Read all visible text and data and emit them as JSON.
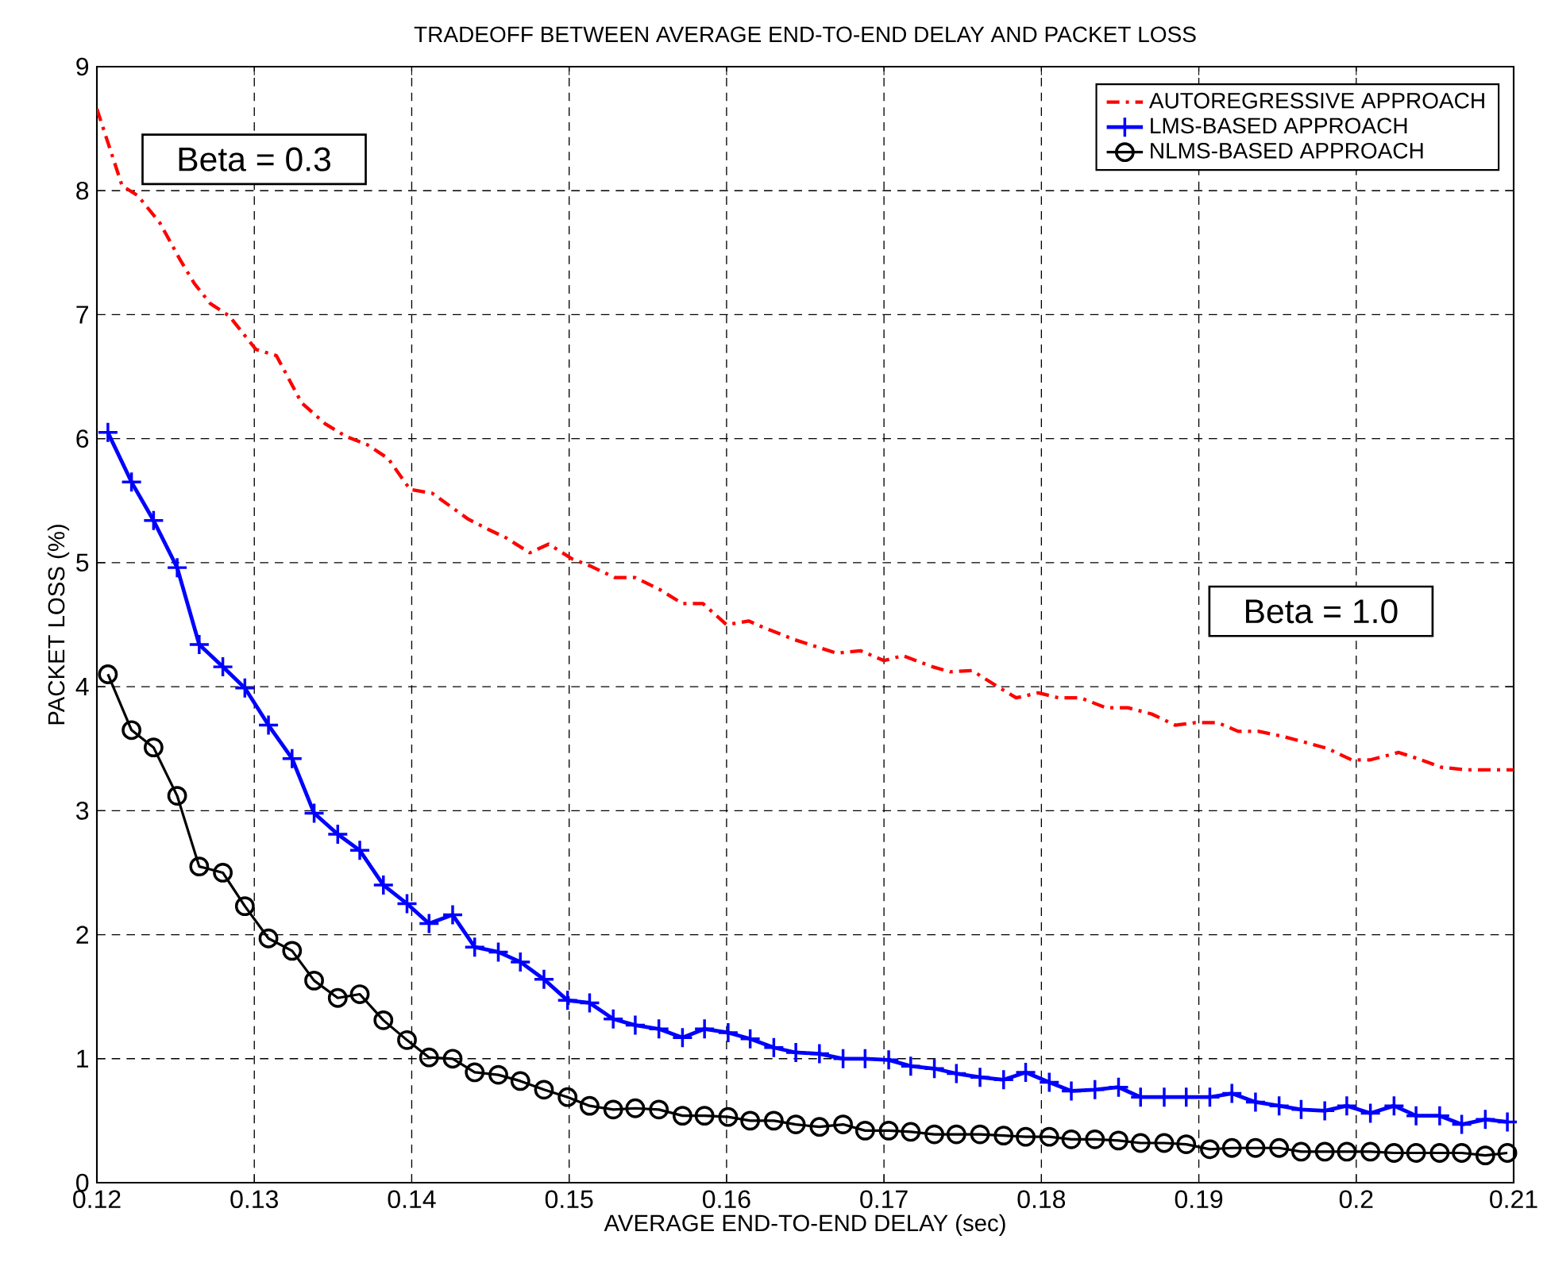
{
  "chart_data": {
    "type": "line",
    "title": "TRADEOFF BETWEEN AVERAGE END-TO-END DELAY AND PACKET LOSS",
    "xlabel": "AVERAGE END-TO-END DELAY (sec)",
    "ylabel": "PACKET LOSS (%)",
    "annotations": [
      "Beta = 0.3",
      "Beta = 1.0"
    ],
    "x": [
      0.1207,
      0.1222,
      0.1236,
      0.1251,
      0.1265,
      0.128,
      0.1294,
      0.1309,
      0.1324,
      0.1338,
      0.1353,
      0.1367,
      0.1382,
      0.1397,
      0.1411,
      0.1426,
      0.144,
      0.1455,
      0.1469,
      0.1484,
      0.1499,
      0.1513,
      0.1528,
      0.1542,
      0.1557,
      0.1572,
      0.1586,
      0.1601,
      0.1615,
      0.163,
      0.1644,
      0.1659,
      0.1674,
      0.1688,
      0.1703,
      0.1717,
      0.1732,
      0.1746,
      0.1761,
      0.1776,
      0.179,
      0.1805,
      0.1819,
      0.1834,
      0.1849,
      0.1863,
      0.1878,
      0.1892,
      0.1907,
      0.1921,
      0.1936,
      0.1951,
      0.1965,
      0.198,
      0.1994,
      0.2009,
      0.2024,
      0.2038,
      0.2053,
      0.2067,
      0.2082,
      0.2096
    ],
    "series": [
      {
        "name": "AUTOREGRESSIVE APPROACH",
        "color": "#ff0000",
        "line_style": "dashdot",
        "marker": "none",
        "x": [
          0.12,
          0.1216,
          0.1226,
          0.124,
          0.1253,
          0.1262,
          0.1272,
          0.1284,
          0.1301,
          0.1314,
          0.133,
          0.1345,
          0.1358,
          0.1372,
          0.1385,
          0.1399,
          0.1413,
          0.1436,
          0.145,
          0.146,
          0.1475,
          0.1487,
          0.1502,
          0.1514,
          0.1529,
          0.1542,
          0.1558,
          0.1572,
          0.1585,
          0.16,
          0.1614,
          0.1623,
          0.1643,
          0.167,
          0.1685,
          0.17,
          0.1712,
          0.1731,
          0.1742,
          0.1756,
          0.1771,
          0.1784,
          0.1798,
          0.1811,
          0.1825,
          0.1841,
          0.1855,
          0.187,
          0.1885,
          0.1898,
          0.1912,
          0.1925,
          0.1938,
          0.1953,
          0.1965,
          0.1982,
          0.1997,
          0.2009,
          0.2027,
          0.2039,
          0.2054,
          0.2069,
          0.21
        ],
        "values": [
          8.66,
          8.04,
          7.96,
          7.74,
          7.44,
          7.25,
          7.09,
          6.99,
          6.72,
          6.67,
          6.29,
          6.12,
          6.02,
          5.95,
          5.84,
          5.59,
          5.56,
          5.35,
          5.26,
          5.2,
          5.08,
          5.15,
          5.03,
          4.97,
          4.88,
          4.88,
          4.78,
          4.67,
          4.67,
          4.5,
          4.53,
          4.48,
          4.38,
          4.27,
          4.29,
          4.21,
          4.25,
          4.16,
          4.12,
          4.13,
          4.01,
          3.91,
          3.95,
          3.91,
          3.91,
          3.83,
          3.83,
          3.78,
          3.69,
          3.71,
          3.71,
          3.64,
          3.64,
          3.6,
          3.56,
          3.5,
          3.41,
          3.41,
          3.47,
          3.42,
          3.35,
          3.33,
          3.33
        ]
      },
      {
        "name": "LMS-BASED APPROACH",
        "color": "#0000ff",
        "line_style": "solid",
        "marker": "cross",
        "values": [
          6.05,
          5.65,
          5.34,
          4.96,
          4.34,
          4.16,
          3.99,
          3.69,
          3.42,
          2.98,
          2.81,
          2.68,
          2.4,
          2.25,
          2.09,
          2.16,
          1.9,
          1.86,
          1.78,
          1.64,
          1.47,
          1.45,
          1.32,
          1.27,
          1.24,
          1.17,
          1.24,
          1.21,
          1.16,
          1.09,
          1.05,
          1.04,
          1.0,
          1.0,
          0.99,
          0.94,
          0.92,
          0.88,
          0.85,
          0.83,
          0.89,
          0.81,
          0.74,
          0.75,
          0.77,
          0.69,
          0.69,
          0.69,
          0.69,
          0.72,
          0.65,
          0.62,
          0.59,
          0.58,
          0.62,
          0.56,
          0.62,
          0.54,
          0.54,
          0.47,
          0.51,
          0.49
        ]
      },
      {
        "name": "NLMS-BASED APPROACH",
        "color": "#000000",
        "line_style": "solid",
        "marker": "circle",
        "values": [
          4.1,
          3.65,
          3.51,
          3.12,
          2.55,
          2.5,
          2.23,
          1.97,
          1.87,
          1.63,
          1.49,
          1.52,
          1.31,
          1.15,
          1.01,
          1.0,
          0.89,
          0.87,
          0.82,
          0.75,
          0.69,
          0.62,
          0.59,
          0.6,
          0.59,
          0.54,
          0.54,
          0.53,
          0.5,
          0.5,
          0.47,
          0.45,
          0.47,
          0.42,
          0.42,
          0.41,
          0.39,
          0.39,
          0.39,
          0.38,
          0.37,
          0.37,
          0.35,
          0.35,
          0.34,
          0.32,
          0.32,
          0.31,
          0.27,
          0.28,
          0.28,
          0.28,
          0.25,
          0.25,
          0.25,
          0.25,
          0.24,
          0.24,
          0.24,
          0.24,
          0.22,
          0.24
        ]
      }
    ],
    "xlim": [
      0.12,
      0.21
    ],
    "ylim": [
      0,
      9
    ],
    "xticks": [
      0.12,
      0.13,
      0.14,
      0.15,
      0.16,
      0.17,
      0.18,
      0.19,
      0.2,
      0.21
    ],
    "yticks": [
      0,
      1,
      2,
      3,
      4,
      5,
      6,
      7,
      8,
      9
    ],
    "grid": true,
    "legend": "top right"
  }
}
